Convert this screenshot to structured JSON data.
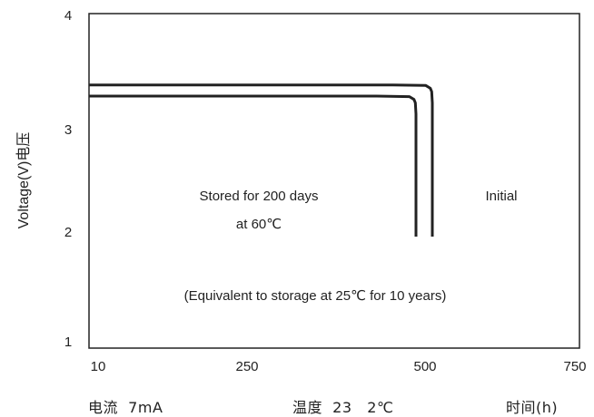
{
  "chart_data": {
    "type": "line",
    "ylabel": "Voltage(V)电压",
    "xlabel": "时间(h)",
    "xlim": [
      0,
      750
    ],
    "ylim": [
      1,
      4
    ],
    "x_ticks": [
      "10",
      "250",
      "500",
      "750"
    ],
    "y_ticks": [
      "1",
      "2",
      "3",
      "4"
    ],
    "grid": false,
    "series": [
      {
        "name": "Stored for 200 days at 60℃",
        "color": "#222222",
        "x": [
          0,
          440,
          490,
          497,
          499,
          500,
          500
        ],
        "y": [
          3.26,
          3.26,
          3.255,
          3.23,
          3.2,
          3.1,
          2.0
        ]
      },
      {
        "name": "Initial",
        "color": "#222222",
        "x": [
          0,
          465,
          515,
          522,
          524,
          525,
          525
        ],
        "y": [
          3.36,
          3.36,
          3.355,
          3.33,
          3.3,
          3.2,
          2.0
        ]
      }
    ],
    "annotations": {
      "stored_line1": "Stored for 200 days",
      "stored_line2": "at 60℃",
      "initial": "Initial",
      "equivalent": "(Equivalent to storage at 25℃ for 10 years)"
    }
  },
  "footer": {
    "current": "电流  7mA",
    "temperature": "温度  23   2℃",
    "time_unit": "时间(h)"
  }
}
